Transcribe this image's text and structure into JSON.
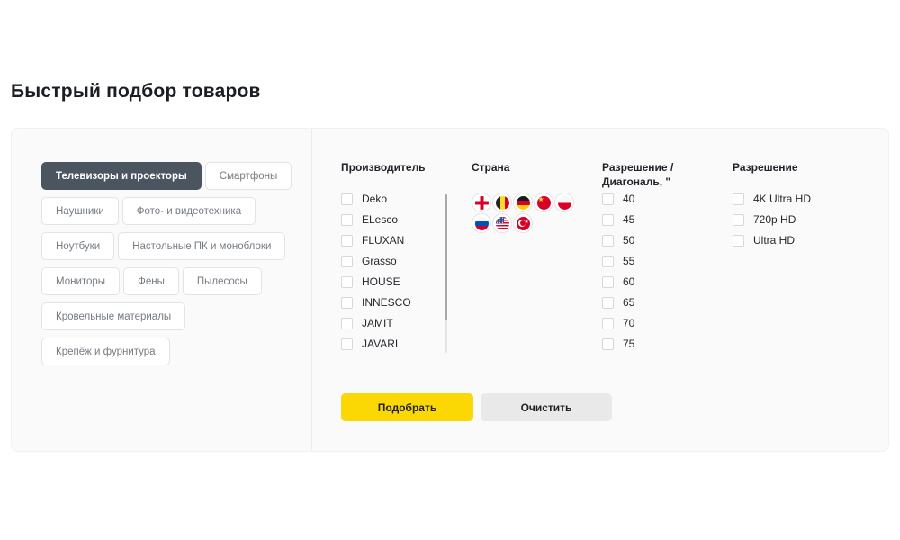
{
  "page": {
    "title": "Быстрый подбор товаров"
  },
  "colors": {
    "accent_yellow": "#fbd704",
    "clear_button_gray": "#e9e9e9",
    "selected_category_bg": "#4a5560",
    "panel_bg": "#fafafa"
  },
  "categories": {
    "rows": [
      [
        {
          "label": "Телевизоры и проекторы",
          "selected": true
        },
        {
          "label": "Смартфоны",
          "selected": false
        }
      ],
      [
        {
          "label": "Наушники",
          "selected": false
        },
        {
          "label": "Фото- и видеотехника",
          "selected": false
        }
      ],
      [
        {
          "label": "Ноутбуки",
          "selected": false
        },
        {
          "label": "Настольные ПК и моноблоки",
          "selected": false
        }
      ],
      [
        {
          "label": "Мониторы",
          "selected": false
        },
        {
          "label": "Фены",
          "selected": false
        },
        {
          "label": "Пылесосы",
          "selected": false
        }
      ],
      [
        {
          "label": "Кровельные материалы",
          "selected": false
        }
      ],
      [
        {
          "label": "Крепёж и фурнитура",
          "selected": false
        }
      ]
    ]
  },
  "filters": {
    "manufacturer": {
      "title": "Производитель",
      "options": [
        {
          "label": "Deko",
          "checked": false
        },
        {
          "label": "ELesco",
          "checked": false
        },
        {
          "label": "FLUXAN",
          "checked": false
        },
        {
          "label": "Grasso",
          "checked": false
        },
        {
          "label": "HOUSE",
          "checked": false
        },
        {
          "label": "INNESCO",
          "checked": false
        },
        {
          "label": "JAMIT",
          "checked": false
        },
        {
          "label": "JAVARI",
          "checked": false
        }
      ]
    },
    "country": {
      "title": "Страна",
      "flags": [
        {
          "id": "england"
        },
        {
          "id": "belgium"
        },
        {
          "id": "germany"
        },
        {
          "id": "china"
        },
        {
          "id": "poland"
        },
        {
          "id": "russia"
        },
        {
          "id": "usa"
        },
        {
          "id": "turkey"
        }
      ]
    },
    "resolution_diagonal": {
      "title_line1": "Разрешение /",
      "title_line2": "Диагональ, \"",
      "options": [
        {
          "label": "40",
          "checked": false
        },
        {
          "label": "45",
          "checked": false
        },
        {
          "label": "50",
          "checked": false
        },
        {
          "label": "55",
          "checked": false
        },
        {
          "label": "60",
          "checked": false
        },
        {
          "label": "65",
          "checked": false
        },
        {
          "label": "70",
          "checked": false
        },
        {
          "label": "75",
          "checked": false
        }
      ]
    },
    "resolution": {
      "title": "Разрешение",
      "options": [
        {
          "label": "4K Ultra HD",
          "checked": false
        },
        {
          "label": "720p HD",
          "checked": false
        },
        {
          "label": "Ultra HD",
          "checked": false
        }
      ]
    }
  },
  "actions": {
    "submit": "Подобрать",
    "clear": "Очистить"
  }
}
